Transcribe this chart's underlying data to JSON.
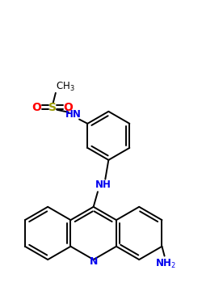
{
  "background_color": "#ffffff",
  "figsize": [
    2.5,
    3.5
  ],
  "dpi": 100,
  "atom_colors": {
    "N": "#0000ee",
    "O": "#ff0000",
    "S": "#999900",
    "C": "#000000"
  },
  "bond_color": "#000000",
  "bond_width": 1.4
}
